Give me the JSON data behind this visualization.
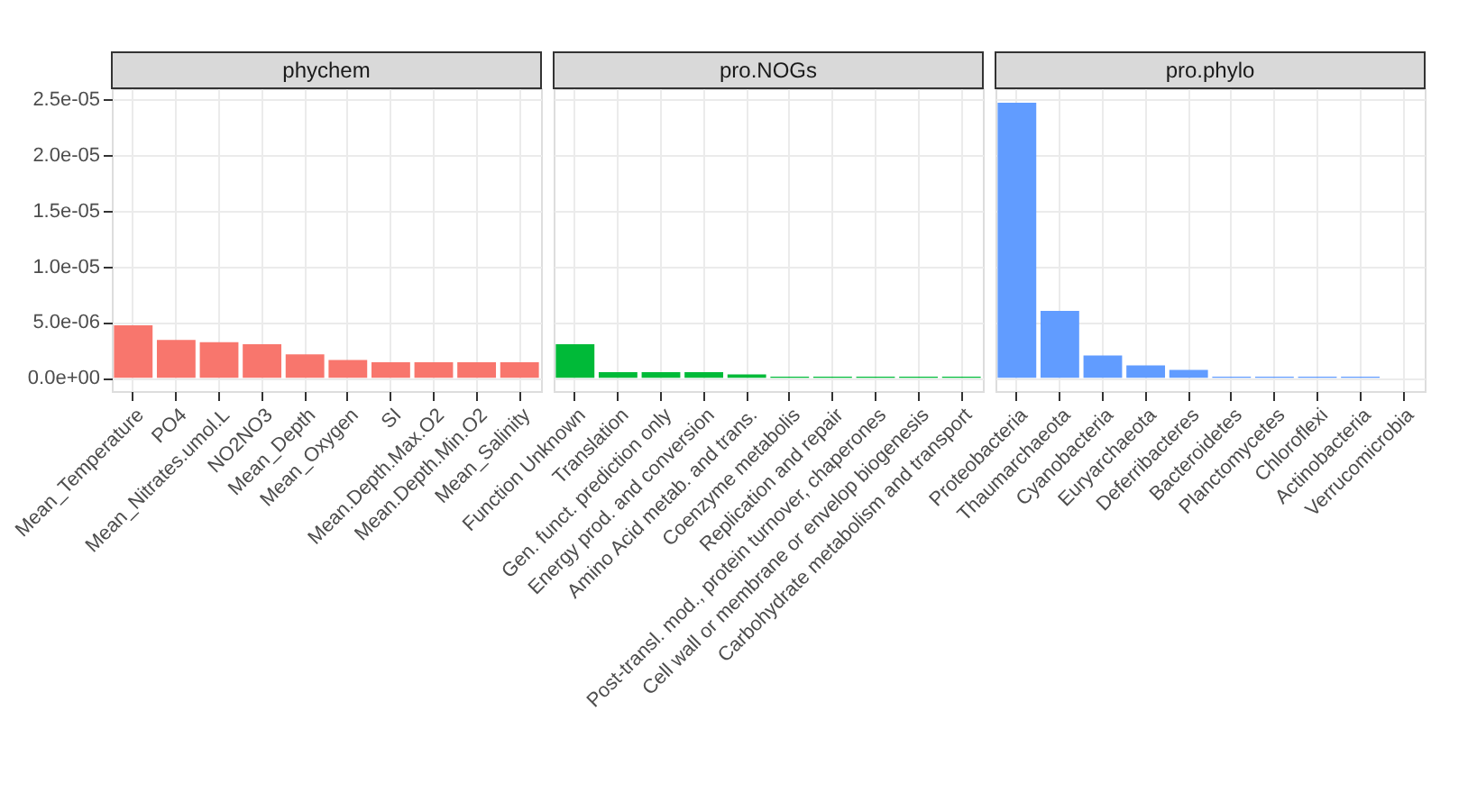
{
  "chart_data": [
    {
      "type": "bar",
      "title": "phychem",
      "categories": [
        "Mean_Temperature",
        "PO4",
        "Mean_Nitrates.umol.L",
        "NO2NO3",
        "Mean_Depth",
        "Mean_Oxygen",
        "SI",
        "Mean.Depth.Max.O2",
        "Mean.Depth.Min.O2",
        "Mean_Salinity"
      ],
      "values": [
        4.7e-06,
        3.4e-06,
        3.2e-06,
        3e-06,
        2.1e-06,
        1.6e-06,
        1.4e-06,
        1.4e-06,
        1.4e-06,
        1.4e-06
      ],
      "color": "#f8766d",
      "ylim": [
        -1.2e-06,
        2.6e-05
      ],
      "yticks": [
        {
          "value": 0,
          "label": "0.0e+00"
        },
        {
          "value": 5e-06,
          "label": "5.0e-06"
        },
        {
          "value": 1e-05,
          "label": "1.0e-05"
        },
        {
          "value": 1.5e-05,
          "label": "1.5e-05"
        },
        {
          "value": 2e-05,
          "label": "2.0e-05"
        },
        {
          "value": 2.5e-05,
          "label": "2.5e-05"
        }
      ],
      "grid": true
    },
    {
      "type": "bar",
      "title": "pro.NOGs",
      "categories": [
        "Function Unknown",
        "Translation",
        "Gen. funct. prediction only",
        "Energy prod. and conversion",
        "Amino Acid metab. and trans.",
        "Coenzyme metabolis",
        "Replication and repair",
        "Post-transl. mod., protein turnover, chaperones",
        "Cell wall or membrane or envelop biogenesis",
        "Carbohydrate metabolism and transport"
      ],
      "values": [
        3e-06,
        5e-07,
        5e-07,
        5e-07,
        3e-07,
        1e-07,
        1e-07,
        1e-07,
        1e-07,
        1e-07
      ],
      "color": "#00ba38",
      "ylim": [
        -1.2e-06,
        2.6e-05
      ],
      "yticks": [
        0,
        5e-06,
        1e-05,
        1.5e-05,
        2e-05,
        2.5e-05
      ],
      "grid": true,
      "tick_labels": "x"
    },
    {
      "type": "bar",
      "title": "pro.phylo",
      "categories": [
        "Proteobacteria",
        "Thaumarchaeota",
        "Cyanobacteria",
        "Euryarchaeota",
        "Deferribacteres",
        "Bacteroidetes",
        "Planctomycetes",
        "Chloroflexi",
        "Actinobacteria",
        "Verrucomicrobia"
      ],
      "values": [
        2.47e-05,
        6e-06,
        2e-06,
        1.1e-06,
        7e-07,
        1e-07,
        1e-07,
        1e-07,
        1e-07,
        null
      ],
      "color": "#619cff",
      "ylim": [
        -1.2e-06,
        2.6e-05
      ],
      "yticks": [
        0,
        5e-06,
        1e-05,
        1.5e-05,
        2e-05,
        2.5e-05
      ],
      "grid": true,
      "tick_labels": "x"
    }
  ]
}
